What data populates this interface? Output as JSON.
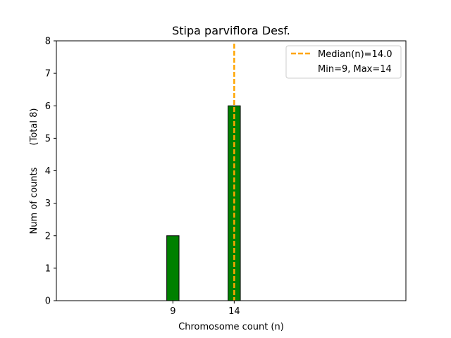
{
  "chart_data": {
    "type": "bar",
    "title": "Stipa parviflora Desf.",
    "xlabel": "Chromosome count (n)",
    "ylabel": "Num of counts",
    "ylabel_secondary": "(Total 8)",
    "x_ticks": [
      9,
      14
    ],
    "xlim": [
      -0.5,
      28
    ],
    "ylim": [
      0,
      8
    ],
    "y_ticks": [
      0,
      1,
      2,
      3,
      4,
      5,
      6,
      7,
      8
    ],
    "grid": false,
    "bar_color": "#008000",
    "bar_edge_color": "#000000",
    "bins": [
      {
        "x_start": 0,
        "x_end": 8.5,
        "value": 0
      },
      {
        "x_start": 8.5,
        "x_end": 9.5,
        "value": 2
      },
      {
        "x_start": 9.5,
        "x_end": 13.5,
        "value": 0
      },
      {
        "x_start": 13.5,
        "x_end": 14.5,
        "value": 6
      },
      {
        "x_start": 14.5,
        "x_end": 17.5,
        "value": 0
      }
    ],
    "median_line": {
      "x": 14.0,
      "color": "#ffa500",
      "style": "dashed"
    },
    "legend": {
      "placement": "top-right",
      "entries": [
        {
          "label": "Median(n)=14.0",
          "marker": "dashed-line",
          "color": "#ffa500"
        },
        {
          "label": "Min=9, Max=14",
          "marker": "none"
        }
      ]
    }
  }
}
